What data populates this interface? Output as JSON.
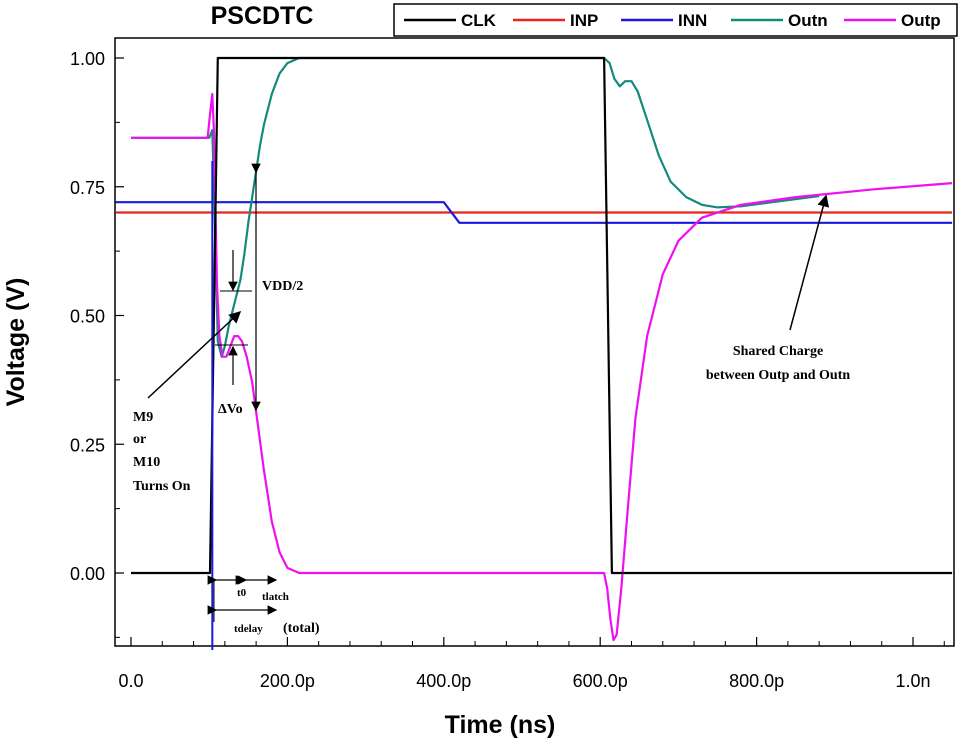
{
  "chart_data": {
    "type": "line",
    "title": "PSCDTC",
    "xlabel": "Time (ns)",
    "ylabel": "Voltage (V)",
    "xlim": [
      -20,
      1050
    ],
    "ylim": [
      -0.17,
      1.06
    ],
    "x_ticks": [
      {
        "value": 0,
        "label": "0.0"
      },
      {
        "value": 200,
        "label": "200.0p"
      },
      {
        "value": 400,
        "label": "400.0p"
      },
      {
        "value": 600,
        "label": "600.0p"
      },
      {
        "value": 800,
        "label": "800.0p"
      },
      {
        "value": 1000,
        "label": "1.0n"
      }
    ],
    "y_ticks": [
      {
        "value": 0,
        "label": "0.00"
      },
      {
        "value": 0.25,
        "label": "0.25"
      },
      {
        "value": 0.5,
        "label": "0.50"
      },
      {
        "value": 0.75,
        "label": "0.75"
      },
      {
        "value": 1.0,
        "label": "1.00"
      }
    ],
    "legend_position": "top-right",
    "series": [
      {
        "name": "CLK",
        "color": "#000000",
        "points": [
          [
            0,
            0
          ],
          [
            101,
            0
          ],
          [
            111,
            1.0
          ],
          [
            605,
            1.0
          ],
          [
            615,
            0
          ],
          [
            1050,
            0
          ]
        ]
      },
      {
        "name": "INP",
        "color": "#e8261c",
        "points": [
          [
            -20,
            0.7
          ],
          [
            1050,
            0.7
          ]
        ]
      },
      {
        "name": "INN",
        "color": "#1a1adc",
        "points": [
          [
            -20,
            0.72
          ],
          [
            400,
            0.72
          ],
          [
            420,
            0.68
          ],
          [
            1050,
            0.68
          ]
        ]
      },
      {
        "name": "Outn",
        "color": "#138a7c",
        "points": [
          [
            0,
            0.845
          ],
          [
            100,
            0.845
          ],
          [
            104,
            0.86
          ],
          [
            107,
            0.7
          ],
          [
            111,
            0.45
          ],
          [
            116,
            0.42
          ],
          [
            120,
            0.44
          ],
          [
            125,
            0.48
          ],
          [
            130,
            0.51
          ],
          [
            135,
            0.54
          ],
          [
            140,
            0.57
          ],
          [
            145,
            0.62
          ],
          [
            150,
            0.68
          ],
          [
            155,
            0.73
          ],
          [
            160,
            0.78
          ],
          [
            165,
            0.83
          ],
          [
            170,
            0.87
          ],
          [
            180,
            0.93
          ],
          [
            190,
            0.97
          ],
          [
            200,
            0.99
          ],
          [
            215,
            1.0
          ],
          [
            605,
            1.0
          ],
          [
            612,
            0.99
          ],
          [
            618,
            0.96
          ],
          [
            625,
            0.945
          ],
          [
            632,
            0.955
          ],
          [
            640,
            0.955
          ],
          [
            648,
            0.935
          ],
          [
            660,
            0.88
          ],
          [
            675,
            0.81
          ],
          [
            690,
            0.76
          ],
          [
            710,
            0.73
          ],
          [
            730,
            0.715
          ],
          [
            750,
            0.71
          ],
          [
            780,
            0.712
          ],
          [
            820,
            0.72
          ],
          [
            880,
            0.732
          ]
        ]
      },
      {
        "name": "Outp",
        "color": "#ee10ee",
        "points": [
          [
            0,
            0.845
          ],
          [
            98,
            0.845
          ],
          [
            101,
            0.89
          ],
          [
            104,
            0.93
          ],
          [
            106,
            0.86
          ],
          [
            108,
            0.7
          ],
          [
            110,
            0.56
          ],
          [
            113,
            0.46
          ],
          [
            117,
            0.42
          ],
          [
            122,
            0.42
          ],
          [
            127,
            0.44
          ],
          [
            132,
            0.46
          ],
          [
            137,
            0.46
          ],
          [
            142,
            0.45
          ],
          [
            148,
            0.42
          ],
          [
            155,
            0.37
          ],
          [
            162,
            0.29
          ],
          [
            170,
            0.2
          ],
          [
            180,
            0.1
          ],
          [
            190,
            0.04
          ],
          [
            200,
            0.01
          ],
          [
            215,
            0.0
          ],
          [
            605,
            0.0
          ],
          [
            609,
            -0.03
          ],
          [
            613,
            -0.09
          ],
          [
            617,
            -0.13
          ],
          [
            621,
            -0.12
          ],
          [
            627,
            -0.03
          ],
          [
            635,
            0.12
          ],
          [
            645,
            0.3
          ],
          [
            660,
            0.46
          ],
          [
            680,
            0.58
          ],
          [
            700,
            0.645
          ],
          [
            730,
            0.69
          ],
          [
            780,
            0.715
          ],
          [
            850,
            0.73
          ],
          [
            950,
            0.745
          ],
          [
            1050,
            0.757
          ]
        ]
      }
    ],
    "annotations": {
      "vdd2": "VDD/2",
      "delta_vo": "ΔVo",
      "m9_line1": "M9",
      "m9_line2": "or",
      "m9_line3": "M10",
      "m9_line4": "Turns  On",
      "shared_line1": "Shared Charge",
      "shared_line2": "between Outp and Outn",
      "t0": "t0",
      "tlatch": "tlatch",
      "tdelay": "tdelay",
      "tdelay_suffix": "(total)"
    }
  }
}
